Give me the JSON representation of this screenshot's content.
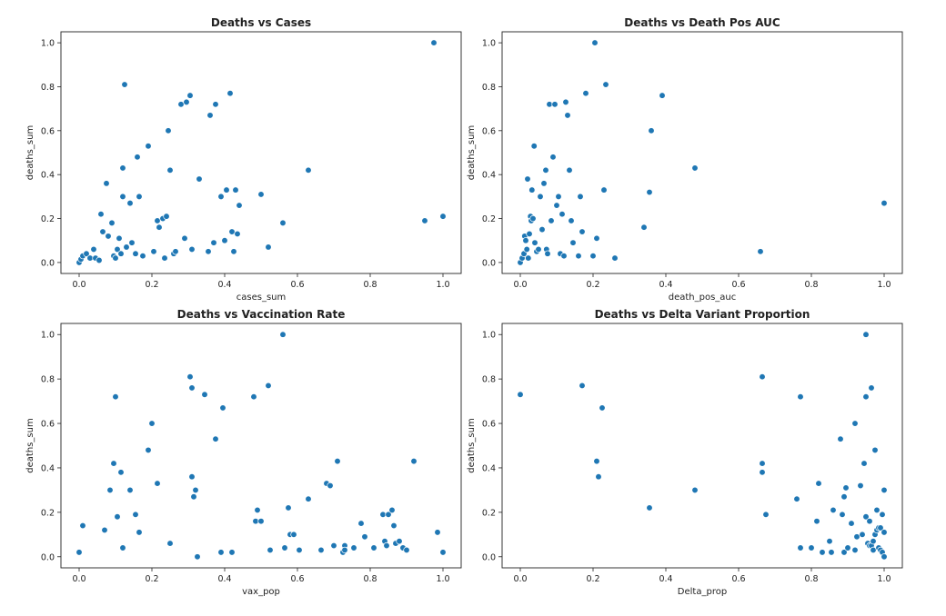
{
  "colors": {
    "point": "#1f77b4",
    "axis": "#222222",
    "background": "#ffffff"
  },
  "chart_data": [
    {
      "type": "scatter",
      "title": "Deaths vs Cases",
      "xlabel": "cases_sum",
      "ylabel": "deaths_sum",
      "xlim": [
        -0.05,
        1.05
      ],
      "ylim": [
        -0.05,
        1.05
      ],
      "xticks": [
        "0.0",
        "0.2",
        "0.4",
        "0.6",
        "0.8",
        "1.0"
      ],
      "yticks": [
        "0.0",
        "0.2",
        "0.4",
        "0.6",
        "0.8",
        "1.0"
      ],
      "grid": false,
      "points": [
        [
          0.0,
          0.0
        ],
        [
          0.005,
          0.015
        ],
        [
          0.01,
          0.03
        ],
        [
          0.02,
          0.04
        ],
        [
          0.03,
          0.02
        ],
        [
          0.04,
          0.06
        ],
        [
          0.045,
          0.02
        ],
        [
          0.055,
          0.01
        ],
        [
          0.06,
          0.22
        ],
        [
          0.065,
          0.14
        ],
        [
          0.075,
          0.36
        ],
        [
          0.08,
          0.12
        ],
        [
          0.09,
          0.18
        ],
        [
          0.095,
          0.03
        ],
        [
          0.1,
          0.02
        ],
        [
          0.105,
          0.06
        ],
        [
          0.11,
          0.11
        ],
        [
          0.115,
          0.04
        ],
        [
          0.12,
          0.43
        ],
        [
          0.12,
          0.3
        ],
        [
          0.125,
          0.81
        ],
        [
          0.13,
          0.07
        ],
        [
          0.14,
          0.27
        ],
        [
          0.145,
          0.09
        ],
        [
          0.155,
          0.04
        ],
        [
          0.16,
          0.48
        ],
        [
          0.165,
          0.3
        ],
        [
          0.175,
          0.03
        ],
        [
          0.19,
          0.53
        ],
        [
          0.205,
          0.05
        ],
        [
          0.215,
          0.19
        ],
        [
          0.22,
          0.16
        ],
        [
          0.23,
          0.2
        ],
        [
          0.235,
          0.02
        ],
        [
          0.24,
          0.21
        ],
        [
          0.245,
          0.6
        ],
        [
          0.25,
          0.42
        ],
        [
          0.26,
          0.04
        ],
        [
          0.265,
          0.05
        ],
        [
          0.28,
          0.72
        ],
        [
          0.29,
          0.11
        ],
        [
          0.295,
          0.73
        ],
        [
          0.305,
          0.76
        ],
        [
          0.31,
          0.06
        ],
        [
          0.33,
          0.38
        ],
        [
          0.355,
          0.05
        ],
        [
          0.36,
          0.67
        ],
        [
          0.37,
          0.09
        ],
        [
          0.375,
          0.72
        ],
        [
          0.39,
          0.3
        ],
        [
          0.4,
          0.1
        ],
        [
          0.405,
          0.33
        ],
        [
          0.415,
          0.77
        ],
        [
          0.42,
          0.14
        ],
        [
          0.425,
          0.05
        ],
        [
          0.43,
          0.33
        ],
        [
          0.435,
          0.13
        ],
        [
          0.44,
          0.26
        ],
        [
          0.5,
          0.31
        ],
        [
          0.52,
          0.07
        ],
        [
          0.56,
          0.18
        ],
        [
          0.63,
          0.42
        ],
        [
          0.95,
          0.19
        ],
        [
          0.975,
          1.0
        ],
        [
          1.0,
          0.21
        ]
      ]
    },
    {
      "type": "scatter",
      "title": "Deaths vs Death Pos AUC",
      "xlabel": "death_pos_auc",
      "ylabel": "deaths_sum",
      "xlim": [
        -0.05,
        1.05
      ],
      "ylim": [
        -0.05,
        1.05
      ],
      "xticks": [
        "0.0",
        "0.2",
        "0.4",
        "0.6",
        "0.8",
        "1.0"
      ],
      "yticks": [
        "0.0",
        "0.2",
        "0.4",
        "0.6",
        "0.8",
        "1.0"
      ],
      "grid": false,
      "points": [
        [
          0.0,
          0.0
        ],
        [
          0.005,
          0.02
        ],
        [
          0.01,
          0.04
        ],
        [
          0.012,
          0.12
        ],
        [
          0.015,
          0.1
        ],
        [
          0.018,
          0.06
        ],
        [
          0.02,
          0.38
        ],
        [
          0.022,
          0.02
        ],
        [
          0.025,
          0.13
        ],
        [
          0.028,
          0.21
        ],
        [
          0.03,
          0.19
        ],
        [
          0.032,
          0.33
        ],
        [
          0.035,
          0.2
        ],
        [
          0.038,
          0.53
        ],
        [
          0.04,
          0.09
        ],
        [
          0.045,
          0.05
        ],
        [
          0.05,
          0.06
        ],
        [
          0.055,
          0.3
        ],
        [
          0.06,
          0.15
        ],
        [
          0.065,
          0.36
        ],
        [
          0.07,
          0.42
        ],
        [
          0.072,
          0.06
        ],
        [
          0.075,
          0.04
        ],
        [
          0.08,
          0.72
        ],
        [
          0.085,
          0.19
        ],
        [
          0.09,
          0.48
        ],
        [
          0.095,
          0.72
        ],
        [
          0.1,
          0.26
        ],
        [
          0.105,
          0.3
        ],
        [
          0.11,
          0.04
        ],
        [
          0.115,
          0.22
        ],
        [
          0.12,
          0.03
        ],
        [
          0.125,
          0.73
        ],
        [
          0.13,
          0.67
        ],
        [
          0.135,
          0.42
        ],
        [
          0.14,
          0.19
        ],
        [
          0.145,
          0.09
        ],
        [
          0.16,
          0.03
        ],
        [
          0.165,
          0.3
        ],
        [
          0.17,
          0.14
        ],
        [
          0.18,
          0.77
        ],
        [
          0.2,
          0.03
        ],
        [
          0.205,
          1.0
        ],
        [
          0.21,
          0.11
        ],
        [
          0.23,
          0.33
        ],
        [
          0.235,
          0.81
        ],
        [
          0.26,
          0.02
        ],
        [
          0.34,
          0.16
        ],
        [
          0.355,
          0.32
        ],
        [
          0.36,
          0.6
        ],
        [
          0.39,
          0.76
        ],
        [
          0.48,
          0.43
        ],
        [
          0.66,
          0.05
        ],
        [
          1.0,
          0.27
        ]
      ]
    },
    {
      "type": "scatter",
      "title": "Deaths vs Vaccination Rate",
      "xlabel": "vax_pop",
      "ylabel": "deaths_sum",
      "xlim": [
        -0.05,
        1.05
      ],
      "ylim": [
        -0.05,
        1.05
      ],
      "xticks": [
        "0.0",
        "0.2",
        "0.4",
        "0.6",
        "0.8",
        "1.0"
      ],
      "yticks": [
        "0.0",
        "0.2",
        "0.4",
        "0.6",
        "0.8",
        "1.0"
      ],
      "grid": false,
      "points": [
        [
          0.0,
          0.02
        ],
        [
          0.01,
          0.14
        ],
        [
          0.07,
          0.12
        ],
        [
          0.085,
          0.3
        ],
        [
          0.095,
          0.42
        ],
        [
          0.1,
          0.72
        ],
        [
          0.105,
          0.18
        ],
        [
          0.115,
          0.38
        ],
        [
          0.12,
          0.04
        ],
        [
          0.14,
          0.3
        ],
        [
          0.155,
          0.19
        ],
        [
          0.165,
          0.11
        ],
        [
          0.19,
          0.48
        ],
        [
          0.2,
          0.6
        ],
        [
          0.215,
          0.33
        ],
        [
          0.25,
          0.06
        ],
        [
          0.305,
          0.81
        ],
        [
          0.31,
          0.76
        ],
        [
          0.31,
          0.36
        ],
        [
          0.315,
          0.27
        ],
        [
          0.32,
          0.3
        ],
        [
          0.325,
          0.0
        ],
        [
          0.345,
          0.73
        ],
        [
          0.375,
          0.53
        ],
        [
          0.39,
          0.02
        ],
        [
          0.395,
          0.67
        ],
        [
          0.42,
          0.02
        ],
        [
          0.48,
          0.72
        ],
        [
          0.485,
          0.16
        ],
        [
          0.49,
          0.21
        ],
        [
          0.5,
          0.16
        ],
        [
          0.52,
          0.77
        ],
        [
          0.525,
          0.03
        ],
        [
          0.56,
          1.0
        ],
        [
          0.565,
          0.04
        ],
        [
          0.575,
          0.22
        ],
        [
          0.58,
          0.1
        ],
        [
          0.59,
          0.1
        ],
        [
          0.605,
          0.03
        ],
        [
          0.63,
          0.26
        ],
        [
          0.665,
          0.03
        ],
        [
          0.68,
          0.33
        ],
        [
          0.69,
          0.32
        ],
        [
          0.7,
          0.05
        ],
        [
          0.71,
          0.43
        ],
        [
          0.725,
          0.02
        ],
        [
          0.73,
          0.05
        ],
        [
          0.73,
          0.03
        ],
        [
          0.755,
          0.04
        ],
        [
          0.775,
          0.15
        ],
        [
          0.785,
          0.09
        ],
        [
          0.81,
          0.04
        ],
        [
          0.835,
          0.19
        ],
        [
          0.84,
          0.07
        ],
        [
          0.845,
          0.05
        ],
        [
          0.85,
          0.19
        ],
        [
          0.86,
          0.21
        ],
        [
          0.865,
          0.14
        ],
        [
          0.87,
          0.06
        ],
        [
          0.88,
          0.07
        ],
        [
          0.89,
          0.04
        ],
        [
          0.9,
          0.03
        ],
        [
          0.92,
          0.43
        ],
        [
          0.985,
          0.11
        ],
        [
          1.0,
          0.02
        ]
      ]
    },
    {
      "type": "scatter",
      "title": "Deaths vs Delta Variant Proportion",
      "xlabel": "Delta_prop",
      "ylabel": "deaths_sum",
      "xlim": [
        -0.05,
        1.05
      ],
      "ylim": [
        -0.05,
        1.05
      ],
      "xticks": [
        "0.0",
        "0.2",
        "0.4",
        "0.6",
        "0.8",
        "1.0"
      ],
      "yticks": [
        "0.0",
        "0.2",
        "0.4",
        "0.6",
        "0.8",
        "1.0"
      ],
      "grid": false,
      "points": [
        [
          0.0,
          0.73
        ],
        [
          0.17,
          0.77
        ],
        [
          0.21,
          0.43
        ],
        [
          0.215,
          0.36
        ],
        [
          0.225,
          0.67
        ],
        [
          0.355,
          0.22
        ],
        [
          0.48,
          0.3
        ],
        [
          0.665,
          0.81
        ],
        [
          0.665,
          0.42
        ],
        [
          0.665,
          0.38
        ],
        [
          0.675,
          0.19
        ],
        [
          0.76,
          0.26
        ],
        [
          0.77,
          0.72
        ],
        [
          0.77,
          0.04
        ],
        [
          0.8,
          0.04
        ],
        [
          0.815,
          0.16
        ],
        [
          0.82,
          0.33
        ],
        [
          0.83,
          0.02
        ],
        [
          0.85,
          0.07
        ],
        [
          0.855,
          0.02
        ],
        [
          0.86,
          0.21
        ],
        [
          0.88,
          0.53
        ],
        [
          0.885,
          0.19
        ],
        [
          0.89,
          0.27
        ],
        [
          0.89,
          0.02
        ],
        [
          0.895,
          0.31
        ],
        [
          0.9,
          0.04
        ],
        [
          0.91,
          0.15
        ],
        [
          0.92,
          0.6
        ],
        [
          0.92,
          0.03
        ],
        [
          0.925,
          0.09
        ],
        [
          0.935,
          0.32
        ],
        [
          0.94,
          0.1
        ],
        [
          0.945,
          0.42
        ],
        [
          0.95,
          0.18
        ],
        [
          0.95,
          1.0
        ],
        [
          0.95,
          0.72
        ],
        [
          0.955,
          0.06
        ],
        [
          0.96,
          0.05
        ],
        [
          0.96,
          0.16
        ],
        [
          0.965,
          0.76
        ],
        [
          0.965,
          0.05
        ],
        [
          0.97,
          0.03
        ],
        [
          0.97,
          0.07
        ],
        [
          0.975,
          0.48
        ],
        [
          0.975,
          0.1
        ],
        [
          0.98,
          0.12
        ],
        [
          0.98,
          0.21
        ],
        [
          0.985,
          0.13
        ],
        [
          0.985,
          0.04
        ],
        [
          0.99,
          0.03
        ],
        [
          0.99,
          0.13
        ],
        [
          0.995,
          0.02
        ],
        [
          0.995,
          0.19
        ],
        [
          1.0,
          0.11
        ],
        [
          1.0,
          0.3
        ],
        [
          1.0,
          0.0
        ]
      ]
    }
  ]
}
